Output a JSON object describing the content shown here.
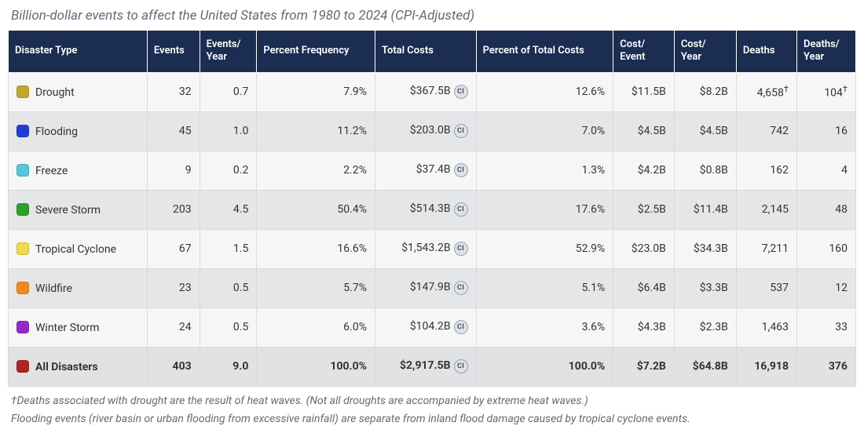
{
  "title": "Billion-dollar events to affect the United States from 1980 to 2024 (CPI-Adjusted)",
  "headerColor": "#1c2d52",
  "ciLabel": "CI",
  "columns": [
    "Disaster Type",
    "Events",
    "Events/\nYear",
    "Percent Frequency",
    "Total Costs",
    "Percent of Total Costs",
    "Cost/\nEvent",
    "Cost/\nYear",
    "Deaths",
    "Deaths/\nYear"
  ],
  "rows": [
    {
      "type": "Drought",
      "color": "#c1a82b",
      "events": "32",
      "eventsYear": "0.7",
      "pctFreq": "7.9%",
      "totalCosts": "$367.5B",
      "pctTotal": "12.6%",
      "costEvent": "$11.5B",
      "costYear": "$8.2B",
      "deaths": "4,658",
      "deathsSup": "†",
      "deathsYear": "104",
      "deathsYearSup": "†"
    },
    {
      "type": "Flooding",
      "color": "#1f3fd4",
      "events": "45",
      "eventsYear": "1.0",
      "pctFreq": "11.2%",
      "totalCosts": "$203.0B",
      "pctTotal": "7.0%",
      "costEvent": "$4.5B",
      "costYear": "$4.5B",
      "deaths": "742",
      "deathsYear": "16"
    },
    {
      "type": "Freeze",
      "color": "#57c7d6",
      "events": "9",
      "eventsYear": "0.2",
      "pctFreq": "2.2%",
      "totalCosts": "$37.4B",
      "pctTotal": "1.3%",
      "costEvent": "$4.2B",
      "costYear": "$0.8B",
      "deaths": "162",
      "deathsYear": "4"
    },
    {
      "type": "Severe Storm",
      "color": "#2aa22a",
      "events": "203",
      "eventsYear": "4.5",
      "pctFreq": "50.4%",
      "totalCosts": "$514.3B",
      "pctTotal": "17.6%",
      "costEvent": "$2.5B",
      "costYear": "$11.4B",
      "deaths": "2,145",
      "deathsYear": "48"
    },
    {
      "type": "Tropical Cyclone",
      "color": "#f2d94b",
      "events": "67",
      "eventsYear": "1.5",
      "pctFreq": "16.6%",
      "totalCosts": "$1,543.2B",
      "pctTotal": "52.9%",
      "costEvent": "$23.0B",
      "costYear": "$34.3B",
      "deaths": "7,211",
      "deathsYear": "160"
    },
    {
      "type": "Wildfire",
      "color": "#f08a1e",
      "events": "23",
      "eventsYear": "0.5",
      "pctFreq": "5.7%",
      "totalCosts": "$147.9B",
      "pctTotal": "5.1%",
      "costEvent": "$6.4B",
      "costYear": "$3.3B",
      "deaths": "537",
      "deathsYear": "12"
    },
    {
      "type": "Winter Storm",
      "color": "#9529c9",
      "events": "24",
      "eventsYear": "0.5",
      "pctFreq": "6.0%",
      "totalCosts": "$104.2B",
      "pctTotal": "3.6%",
      "costEvent": "$4.3B",
      "costYear": "$2.3B",
      "deaths": "1,463",
      "deathsYear": "33"
    }
  ],
  "totals": {
    "type": "All Disasters",
    "color": "#b22424",
    "events": "403",
    "eventsYear": "9.0",
    "pctFreq": "100.0%",
    "totalCosts": "$2,917.5B",
    "pctTotal": "100.0%",
    "costEvent": "$7.2B",
    "costYear": "$64.8B",
    "deaths": "16,918",
    "deathsYear": "376"
  },
  "footnotes": [
    "†Deaths associated with drought are the result of heat waves. (Not all droughts are accompanied by extreme heat waves.)",
    "Flooding events (river basin or urban flooding from excessive rainfall) are separate from inland flood damage caused by tropical cyclone events."
  ]
}
